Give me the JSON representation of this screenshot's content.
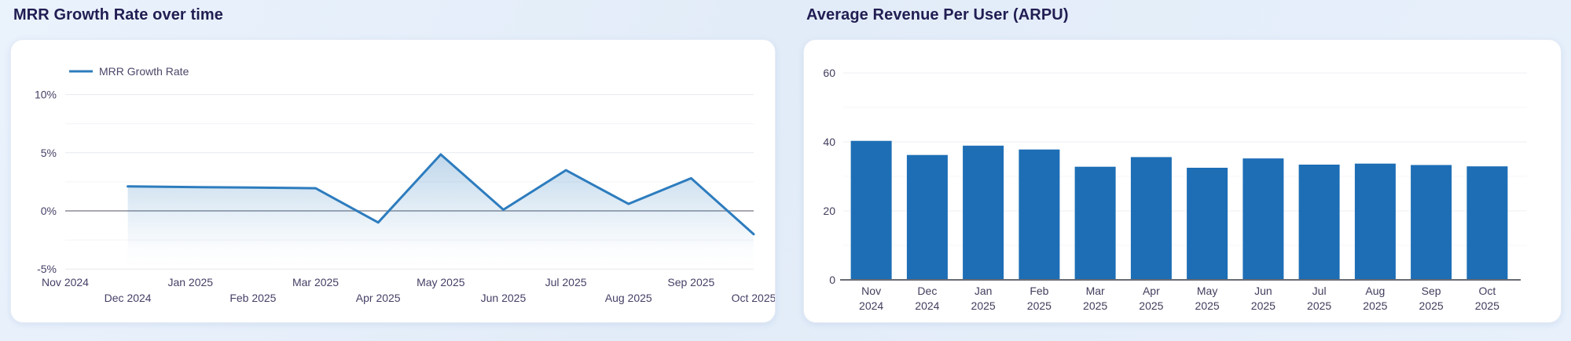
{
  "page": {
    "background_color": "#e4eef9",
    "card_color": "#ffffff"
  },
  "chart_data": [
    {
      "type": "line",
      "title": "MRR Growth Rate over time",
      "categories": [
        "Nov 2024",
        "Dec 2024",
        "Jan 2025",
        "Feb 2025",
        "Mar 2025",
        "Apr 2025",
        "May 2025",
        "Jun 2025",
        "Jul 2025",
        "Aug 2025",
        "Sep 2025",
        "Oct 2025"
      ],
      "series": [
        {
          "name": "MRR Growth Rate",
          "values": [
            null,
            2.1,
            2.05,
            2.0,
            1.95,
            -1.0,
            4.85,
            0.1,
            3.5,
            0.6,
            2.8,
            -2.0
          ]
        }
      ],
      "unit": "%",
      "ylim": [
        -5,
        10
      ],
      "y_ticks": [
        {
          "value": 10,
          "label": "10%"
        },
        {
          "value": 5,
          "label": "5%"
        },
        {
          "value": 0,
          "label": "0%"
        },
        {
          "value": -5,
          "label": "-5%"
        }
      ],
      "y_minor_ticks": [
        7.5,
        2.5,
        -2.5
      ],
      "grid": true,
      "legend_position": "top-left",
      "line_color": "#2d7cbe",
      "area_fill": true,
      "zero_line_color": "#a6a9b1",
      "tick_label_color": "#453f66"
    },
    {
      "type": "bar",
      "title": "Average Revenue Per User (ARPU)",
      "categories": [
        "Nov 2024",
        "Dec 2024",
        "Jan 2025",
        "Feb 2025",
        "Mar 2025",
        "Apr 2025",
        "May 2025",
        "Jun 2025",
        "Jul 2025",
        "Aug 2025",
        "Sep 2025",
        "Oct 2025"
      ],
      "values": [
        40.3,
        36.2,
        38.9,
        37.8,
        32.8,
        35.6,
        32.5,
        35.2,
        33.4,
        33.7,
        33.3,
        32.9
      ],
      "ylim": [
        0,
        60
      ],
      "y_ticks": [
        {
          "value": 0,
          "label": "0"
        },
        {
          "value": 20,
          "label": "20"
        },
        {
          "value": 40,
          "label": "40"
        },
        {
          "value": 60,
          "label": "60"
        }
      ],
      "y_minor_ticks": [
        10,
        30,
        50
      ],
      "grid": true,
      "legend_position": "none",
      "bar_color": "#1d6eb5",
      "axis_line_color": "#686b73",
      "tick_label_color": "#413d5c"
    }
  ]
}
